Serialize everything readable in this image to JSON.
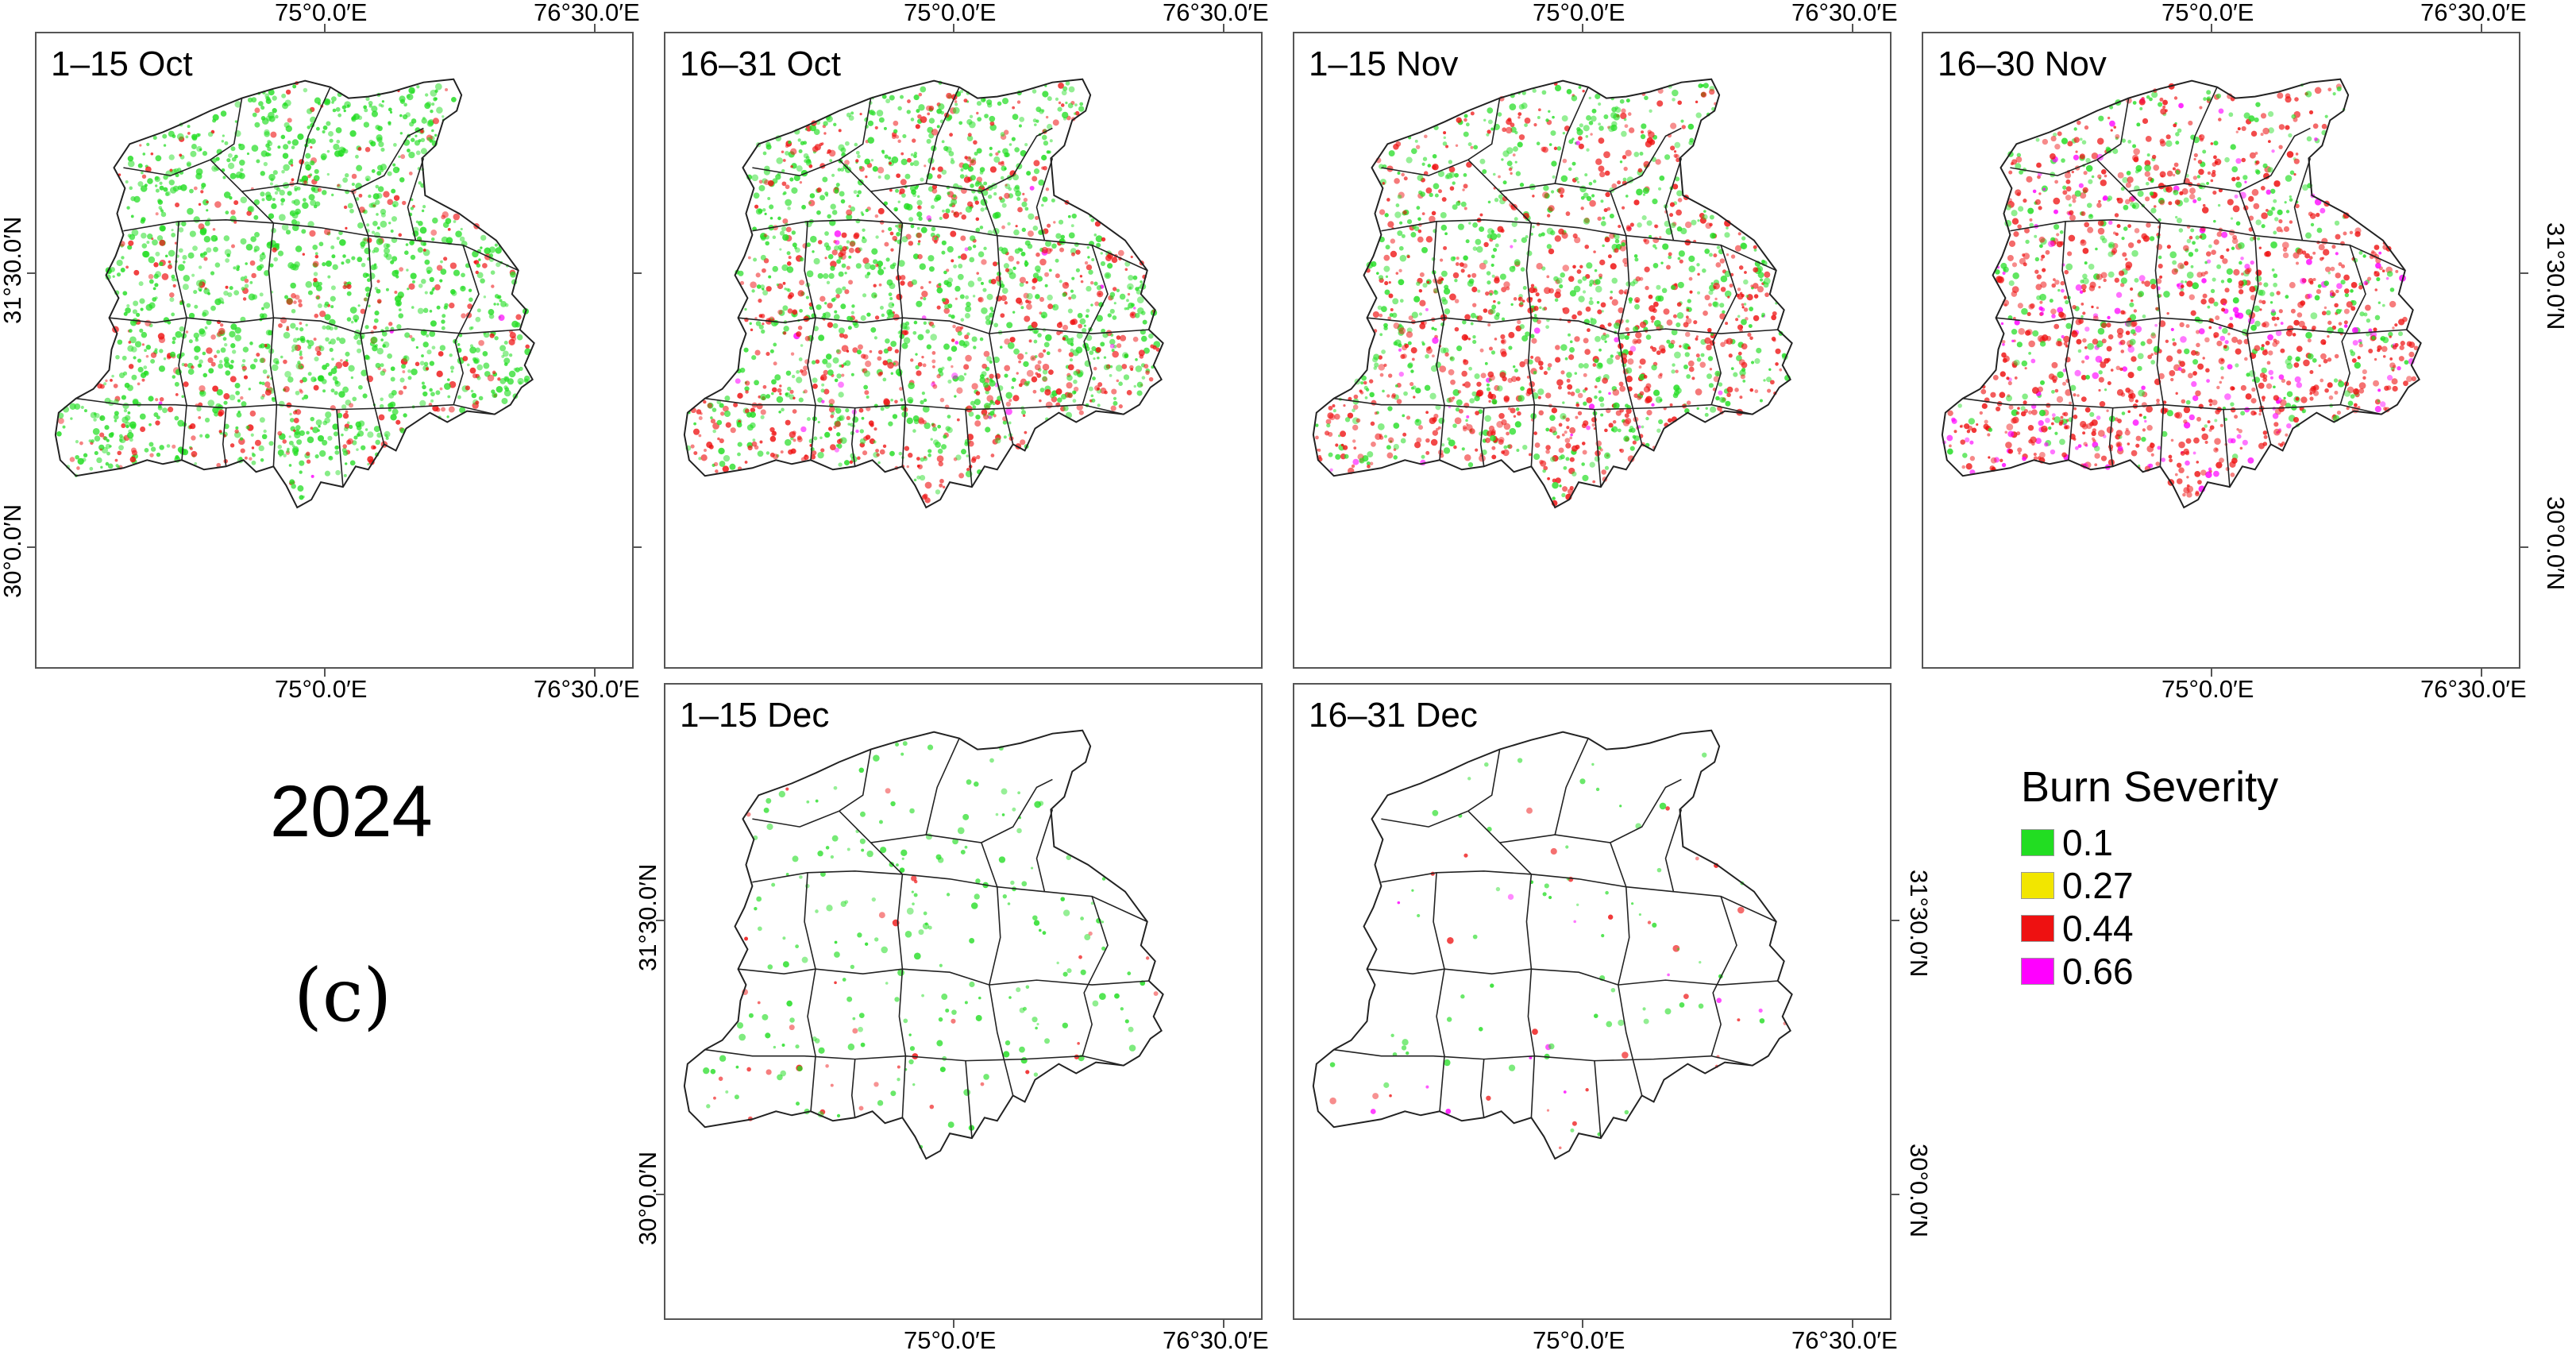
{
  "axis": {
    "lon_ticks": [
      "75°0.0′E",
      "76°30.0′E"
    ],
    "lat_ticks": [
      "31°30.0′N",
      "30°0.0′N"
    ]
  },
  "panels": [
    {
      "id": "oct-1",
      "title": "1–15 Oct",
      "intensity": {
        "green": 0.9,
        "red": 0.35,
        "magenta": 0.02
      }
    },
    {
      "id": "oct-2",
      "title": "16–31 Oct",
      "intensity": {
        "green": 0.75,
        "red": 0.6,
        "magenta": 0.05
      }
    },
    {
      "id": "nov-1",
      "title": "1–15 Nov",
      "intensity": {
        "green": 0.45,
        "red": 0.75,
        "magenta": 0.05
      }
    },
    {
      "id": "nov-2",
      "title": "16–30 Nov",
      "intensity": {
        "green": 0.3,
        "red": 0.85,
        "magenta": 0.45
      }
    },
    {
      "id": "dec-1",
      "title": "1–15 Dec",
      "intensity": {
        "green": 0.12,
        "red": 0.04,
        "magenta": 0.0
      }
    },
    {
      "id": "dec-2",
      "title": "16–31 Dec",
      "intensity": {
        "green": 0.03,
        "red": 0.03,
        "magenta": 0.01
      }
    }
  ],
  "year_label": "2024",
  "subfigure_label": "(c)",
  "legend": {
    "title": "Burn Severity",
    "items": [
      {
        "label": "0.1",
        "color": "#22dd22"
      },
      {
        "label": "0.27",
        "color": "#f2e600"
      },
      {
        "label": "0.44",
        "color": "#ee1111"
      },
      {
        "label": "0.66",
        "color": "#ff00ff"
      }
    ]
  }
}
